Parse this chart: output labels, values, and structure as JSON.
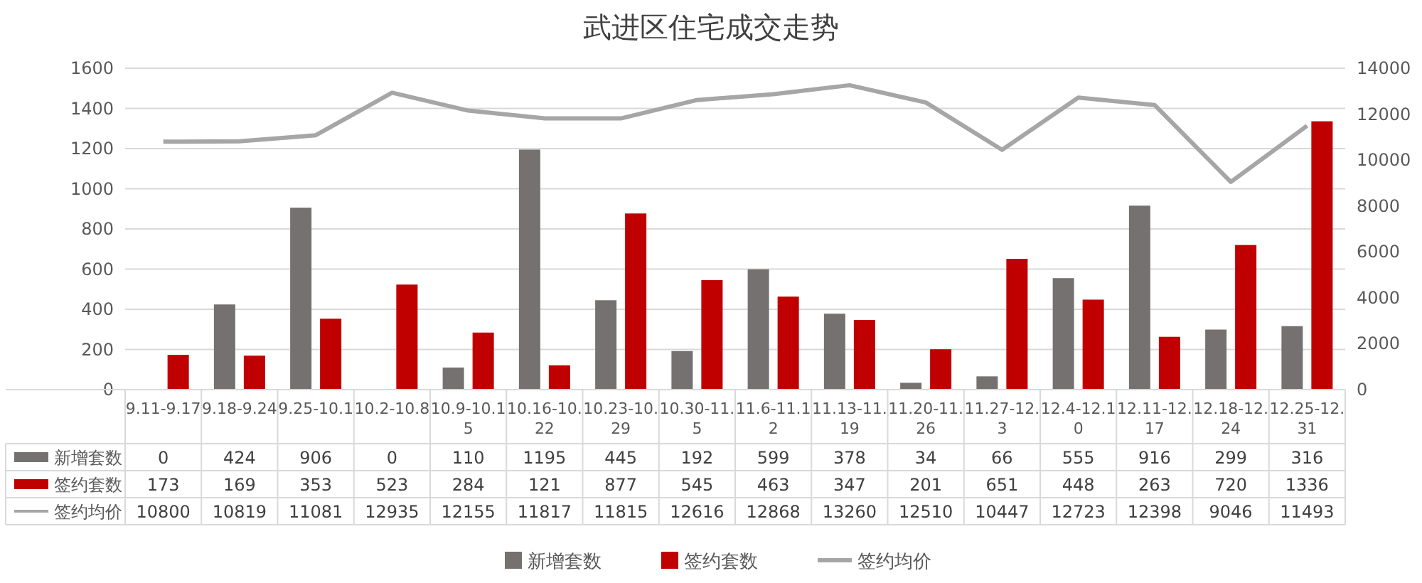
{
  "chart_data": {
    "type": "bar",
    "title": "武进区住宅成交走势",
    "categories": [
      "9.11-9.17",
      "9.18-9.24",
      "9.25-10.1",
      "10.2-10.8",
      "10.9-10.15",
      "10.16-10.22",
      "10.23-10.29",
      "10.30-11.5",
      "11.6-11.12",
      "11.13-11.19",
      "11.20-11.26",
      "11.27-12.3",
      "12.4-12.10",
      "12.11-12.17",
      "12.18-12.24",
      "12.25-12.31"
    ],
    "series": [
      {
        "name": "新增套数",
        "type": "bar",
        "color": "#767171",
        "values": [
          0,
          424,
          906,
          0,
          110,
          1195,
          445,
          192,
          599,
          378,
          34,
          66,
          555,
          916,
          299,
          316
        ]
      },
      {
        "name": "签约套数",
        "type": "bar",
        "color": "#c00000",
        "values": [
          173,
          169,
          353,
          523,
          284,
          121,
          877,
          545,
          463,
          347,
          201,
          651,
          448,
          263,
          720,
          1336
        ]
      },
      {
        "name": "签约均价",
        "type": "line",
        "axis": "y2",
        "color": "#a6a6a6",
        "values": [
          10800,
          10819,
          11081,
          12935,
          12155,
          11817,
          11815,
          12616,
          12868,
          13260,
          12510,
          10447,
          12723,
          12398,
          9046,
          11493
        ]
      }
    ],
    "ylim": [
      0,
      1600
    ],
    "yticks": [
      0,
      200,
      400,
      600,
      800,
      1000,
      1200,
      1400,
      1600
    ],
    "y2lim": [
      0,
      14000
    ],
    "y2ticks": [
      0,
      2000,
      4000,
      6000,
      8000,
      10000,
      12000,
      14000
    ],
    "grid": "y",
    "legend": "bottom",
    "data_labels": true
  }
}
